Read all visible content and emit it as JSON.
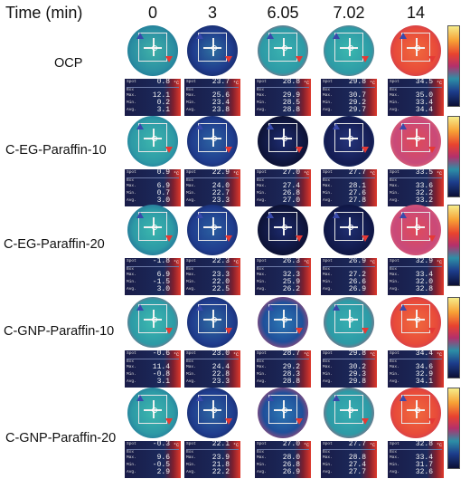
{
  "header": {
    "time_label": "Time (min)",
    "columns": [
      "0",
      "3",
      "6.05",
      "7.02",
      "14"
    ]
  },
  "colors": {
    "ocp_0": "#2a8ea2",
    "ocp_hot": "#e84a3a",
    "cool": "#1f3c8d",
    "dark": "#0d1235",
    "pink": "#c94a7a",
    "teal": "#2d9aa6"
  },
  "unit": "°C",
  "rows": [
    {
      "label": "OCP",
      "cells": [
        {
          "spot": "0.8",
          "max": "12.1",
          "min": "0.2",
          "avg": "3.1"
        },
        {
          "spot": "23.7",
          "max": "25.6",
          "min": "23.4",
          "avg": "23.8"
        },
        {
          "spot": "28.8",
          "max": "29.9",
          "min": "28.5",
          "avg": "28.8"
        },
        {
          "spot": "29.8",
          "max": "30.7",
          "min": "29.2",
          "avg": "29.7"
        },
        {
          "spot": "34.5",
          "max": "35.0",
          "min": "33.4",
          "avg": "34.4"
        }
      ]
    },
    {
      "label": "C-EG-Paraffin-10",
      "cells": [
        {
          "spot": "0.9",
          "max": "6.9",
          "min": "0.7",
          "avg": "3.0"
        },
        {
          "spot": "22.9",
          "max": "24.0",
          "min": "22.7",
          "avg": "23.3"
        },
        {
          "spot": "27.0",
          "max": "27.4",
          "min": "26.8",
          "avg": "27.0"
        },
        {
          "spot": "27.7",
          "max": "28.1",
          "min": "27.6",
          "avg": "27.8"
        },
        {
          "spot": "33.5",
          "max": "33.6",
          "min": "32.2",
          "avg": "33.2"
        }
      ]
    },
    {
      "label": "C-EG-Paraffin-20",
      "cells": [
        {
          "spot": "-1.8",
          "max": "6.9",
          "min": "-1.5",
          "avg": "3.0"
        },
        {
          "spot": "22.3",
          "max": "23.3",
          "min": "22.0",
          "avg": "22.5"
        },
        {
          "spot": "26.3",
          "max": "32.3",
          "min": "25.9",
          "avg": "26.2"
        },
        {
          "spot": "26.9",
          "max": "27.2",
          "min": "26.6",
          "avg": "26.9"
        },
        {
          "spot": "32.9",
          "max": "33.4",
          "min": "32.0",
          "avg": "32.8"
        }
      ]
    },
    {
      "label": "C-GNP-Paraffin-10",
      "cells": [
        {
          "spot": "-0.6",
          "max": "11.4",
          "min": "-0.8",
          "avg": "3.1"
        },
        {
          "spot": "23.0",
          "max": "24.4",
          "min": "22.8",
          "avg": "23.3"
        },
        {
          "spot": "28.7",
          "max": "29.2",
          "min": "28.3",
          "avg": "28.8"
        },
        {
          "spot": "29.8",
          "max": "30.2",
          "min": "29.3",
          "avg": "29.8"
        },
        {
          "spot": "34.4",
          "max": "34.6",
          "min": "32.9",
          "avg": "34.1"
        }
      ]
    },
    {
      "label": "C-GNP-Paraffin-20",
      "cells": [
        {
          "spot": "-0.3",
          "max": "9.6",
          "min": "-0.5",
          "avg": "2.9"
        },
        {
          "spot": "22.1",
          "max": "23.9",
          "min": "21.8",
          "avg": "22.2"
        },
        {
          "spot": "27.0",
          "max": "28.0",
          "min": "26.8",
          "avg": "26.9"
        },
        {
          "spot": "27.7",
          "max": "28.8",
          "min": "27.4",
          "avg": "27.7"
        },
        {
          "spot": "32.8",
          "max": "33.4",
          "min": "31.7",
          "avg": "32.6"
        }
      ]
    }
  ],
  "panel_labels": {
    "spot": "Spot",
    "box": "Box",
    "max": "Max.",
    "min": "Min.",
    "avg": "Avg."
  }
}
